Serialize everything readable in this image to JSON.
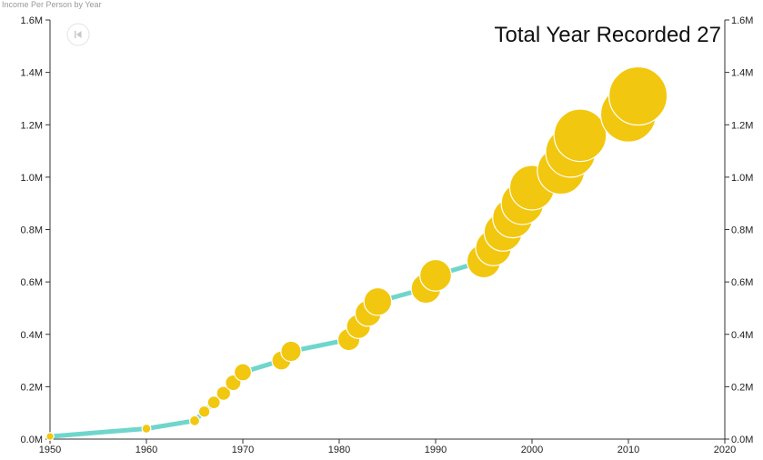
{
  "colors": {
    "line": "#6fd6cc",
    "bubble": "#f2c70f",
    "axis": "#333333",
    "button_border": "#e4e4e4",
    "button_icon": "#c8c8c8"
  },
  "controls": {
    "rewind_icon": "skip-back-icon"
  },
  "chart_data": {
    "type": "scatter",
    "title": "Income Per Person by Year",
    "annotation": "Total Year Recorded 27",
    "xlabel": "",
    "ylabel": "",
    "xlim": [
      1950,
      2020
    ],
    "ylim": [
      0,
      1600000
    ],
    "x_ticks": [
      {
        "value": 1950,
        "label": "1950"
      },
      {
        "value": 1960,
        "label": "1960"
      },
      {
        "value": 1970,
        "label": "1970"
      },
      {
        "value": 1980,
        "label": "1980"
      },
      {
        "value": 1990,
        "label": "1990"
      },
      {
        "value": 2000,
        "label": "2000"
      },
      {
        "value": 2010,
        "label": "2010"
      },
      {
        "value": 2020,
        "label": "2020"
      }
    ],
    "y_ticks": [
      {
        "value": 0,
        "label": "0.0M"
      },
      {
        "value": 200000,
        "label": "0.2M"
      },
      {
        "value": 400000,
        "label": "0.4M"
      },
      {
        "value": 600000,
        "label": "0.6M"
      },
      {
        "value": 800000,
        "label": "0.8M"
      },
      {
        "value": 1000000,
        "label": "1.0M"
      },
      {
        "value": 1200000,
        "label": "1.2M"
      },
      {
        "value": 1400000,
        "label": "1.4M"
      },
      {
        "value": 1600000,
        "label": "1.6M"
      }
    ],
    "line": {
      "x": [
        1950,
        1960,
        1965,
        1966,
        1967,
        1968,
        1969,
        1970,
        1974,
        1975,
        1981,
        1982,
        1983,
        1984,
        1989,
        1990,
        1995,
        1996,
        1997,
        1998,
        1999,
        2000,
        2003,
        2004,
        2005,
        2010,
        2011
      ],
      "y": [
        10000,
        40000,
        70000,
        105000,
        140000,
        175000,
        215000,
        255000,
        300000,
        335000,
        380000,
        430000,
        480000,
        525000,
        575000,
        625000,
        680000,
        730000,
        790000,
        845000,
        900000,
        960000,
        1025000,
        1095000,
        1160000,
        1240000,
        1310000
      ]
    },
    "points": [
      {
        "x": 1950,
        "y": 10000
      },
      {
        "x": 1960,
        "y": 40000
      },
      {
        "x": 1965,
        "y": 70000
      },
      {
        "x": 1966,
        "y": 105000
      },
      {
        "x": 1967,
        "y": 140000
      },
      {
        "x": 1968,
        "y": 175000
      },
      {
        "x": 1969,
        "y": 215000
      },
      {
        "x": 1970,
        "y": 255000
      },
      {
        "x": 1974,
        "y": 300000
      },
      {
        "x": 1975,
        "y": 335000
      },
      {
        "x": 1981,
        "y": 380000
      },
      {
        "x": 1982,
        "y": 430000
      },
      {
        "x": 1983,
        "y": 480000
      },
      {
        "x": 1984,
        "y": 525000
      },
      {
        "x": 1989,
        "y": 575000
      },
      {
        "x": 1990,
        "y": 625000
      },
      {
        "x": 1995,
        "y": 680000
      },
      {
        "x": 1996,
        "y": 730000
      },
      {
        "x": 1997,
        "y": 790000
      },
      {
        "x": 1998,
        "y": 845000
      },
      {
        "x": 1999,
        "y": 900000
      },
      {
        "x": 2000,
        "y": 960000
      },
      {
        "x": 2003,
        "y": 1025000
      },
      {
        "x": 2004,
        "y": 1095000
      },
      {
        "x": 2005,
        "y": 1160000
      },
      {
        "x": 2010,
        "y": 1240000
      },
      {
        "x": 2011,
        "y": 1310000
      }
    ],
    "bubble_size": "proportional to y",
    "grid": false,
    "legend": "none"
  }
}
